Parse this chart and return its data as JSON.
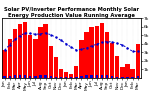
{
  "title": "Solar PV/Inverter Performance Monthly Solar Energy Production Value Running Average",
  "months": [
    "Jan",
    "Feb",
    "Mar",
    "Apr",
    "May",
    "Jun",
    "Jul",
    "Aug",
    "Sep",
    "Oct",
    "Nov",
    "Dec",
    "Jan",
    "Feb",
    "Mar",
    "Apr",
    "May",
    "Jun",
    "Jul",
    "Aug",
    "Sep",
    "Oct",
    "Nov",
    "Dec",
    "Jan",
    "Feb",
    "Mar"
  ],
  "bar_values": [
    65,
    90,
    115,
    125,
    130,
    100,
    90,
    120,
    125,
    75,
    50,
    22,
    15,
    10,
    28,
    88,
    108,
    118,
    122,
    128,
    108,
    82,
    52,
    26,
    32,
    22,
    80
  ],
  "small_values": [
    4,
    5,
    6,
    7,
    7,
    5,
    5,
    6,
    7,
    4,
    3,
    2,
    2,
    2,
    3,
    5,
    6,
    6,
    6,
    7,
    6,
    4,
    3,
    2,
    3,
    2,
    4
  ],
  "running_avg": [
    65,
    78,
    90,
    99,
    105,
    104,
    102,
    103,
    105,
    101,
    95,
    88,
    80,
    72,
    65,
    67,
    70,
    75,
    79,
    83,
    85,
    84,
    81,
    77,
    70,
    62,
    62
  ],
  "bar_color": "#ff0000",
  "small_bar_color": "#0000cc",
  "avg_line_color": "#0000cc",
  "bg_color": "#ffffff",
  "ylim": [
    0,
    140
  ],
  "ytick_labels": [
    "1k",
    "2k",
    "3k",
    "4k",
    "5k",
    "6k",
    "7k"
  ],
  "ytick_vals": [
    20,
    40,
    60,
    80,
    100,
    120,
    140
  ],
  "grid_color": "#aaaaaa",
  "title_fontsize": 3.8,
  "tick_fontsize": 3.2,
  "label_fontsize": 3.0
}
